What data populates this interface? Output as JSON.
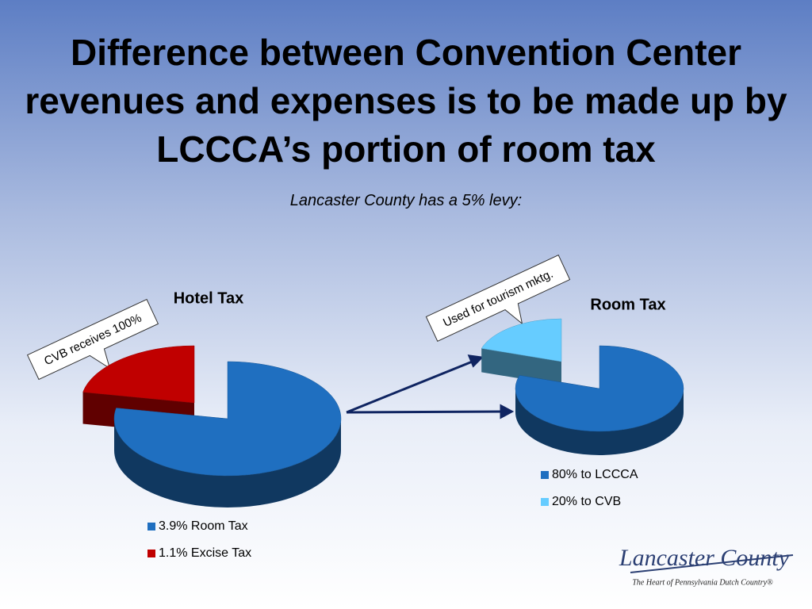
{
  "slide": {
    "title": "Difference between Convention Center revenues and expenses is to be made up by LCCCA’s portion of  room tax",
    "subtitle": "Lancaster County has a 5% levy:"
  },
  "chart_data": [
    {
      "type": "pie",
      "title": "Hotel Tax",
      "categories": [
        "3.9% Room Tax",
        "1.1% Excise Tax"
      ],
      "values": [
        3.9,
        1.1
      ],
      "colors": [
        "#1f6fc0",
        "#c00000"
      ],
      "callout": "CVB receives 100%"
    },
    {
      "type": "pie",
      "title": "Room Tax",
      "categories": [
        "80% to LCCCA",
        "20% to CVB"
      ],
      "values": [
        80,
        20
      ],
      "colors": [
        "#1f6fc0",
        "#66ccff"
      ],
      "callout": "Used for tourism mktg."
    }
  ],
  "logo": {
    "name": "Lancaster County",
    "tagline": "The Heart of Pennsylvania Dutch Country®"
  }
}
